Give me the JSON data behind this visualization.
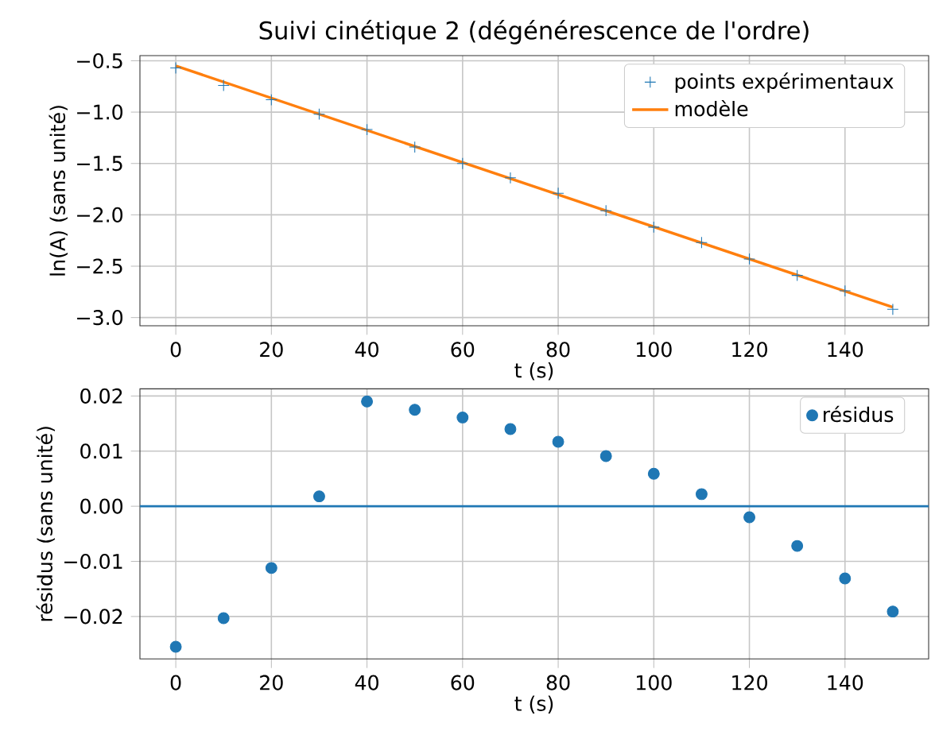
{
  "chart_data": [
    {
      "type": "scatter",
      "title": "Suivi cinétique 2 (dégénérescence de l'ordre)",
      "xlabel": "t (s)",
      "ylabel": "ln(A) (sans unité)",
      "x": [
        0,
        10,
        20,
        30,
        40,
        50,
        60,
        70,
        80,
        90,
        100,
        110,
        120,
        130,
        140,
        150
      ],
      "series": [
        {
          "name": "points expérimentaux",
          "marker": "cross",
          "color": "#1f77b4",
          "values": [
            -0.57,
            -0.74,
            -0.88,
            -1.02,
            -1.17,
            -1.34,
            -1.5,
            -1.64,
            -1.79,
            -1.96,
            -2.12,
            -2.27,
            -2.43,
            -2.59,
            -2.74,
            -2.92
          ]
        },
        {
          "name": "modèle",
          "type": "line",
          "color": "#ff7f0e",
          "x": [
            0,
            150
          ],
          "values": [
            -0.55,
            -2.9
          ]
        }
      ],
      "xlim": [
        -7.5,
        157.5
      ],
      "ylim": [
        -3.08,
        -0.45
      ],
      "xticks": [
        0,
        20,
        40,
        60,
        80,
        100,
        120,
        140
      ],
      "yticks": [
        {
          "value": -3.0,
          "label": "−3.0"
        },
        {
          "value": -2.5,
          "label": "−2.5"
        },
        {
          "value": -2.0,
          "label": "−2.0"
        },
        {
          "value": -1.5,
          "label": "−1.5"
        },
        {
          "value": -1.0,
          "label": "−1.0"
        },
        {
          "value": -0.5,
          "label": "−0.5"
        }
      ],
      "grid": true,
      "legend": "top right"
    },
    {
      "type": "scatter",
      "xlabel": "t (s)",
      "ylabel": "résidus (sans unité)",
      "x": [
        0,
        10,
        20,
        30,
        40,
        50,
        60,
        70,
        80,
        90,
        100,
        110,
        120,
        130,
        140,
        150
      ],
      "series": [
        {
          "name": "résidus",
          "marker": "circle",
          "color": "#1f77b4",
          "values": [
            -0.0255,
            -0.0203,
            -0.0112,
            0.0018,
            0.019,
            0.0175,
            0.0161,
            0.014,
            0.0117,
            0.0091,
            0.0059,
            0.0022,
            -0.002,
            -0.0072,
            -0.0131,
            -0.0191
          ]
        }
      ],
      "ref_lines": [
        {
          "axis": "y",
          "value": 0,
          "color": "#1f77b4"
        }
      ],
      "xlim": [
        -7.5,
        157.5
      ],
      "ylim": [
        -0.0277,
        0.0213
      ],
      "xticks": [
        0,
        20,
        40,
        60,
        80,
        100,
        120,
        140
      ],
      "yticks": [
        {
          "value": -0.02,
          "label": "−0.02"
        },
        {
          "value": -0.01,
          "label": "−0.01"
        },
        {
          "value": 0,
          "label": "0.00"
        },
        {
          "value": 0.01,
          "label": "0.01"
        },
        {
          "value": 0.02,
          "label": "0.02"
        }
      ],
      "grid": true,
      "legend": "top right"
    }
  ]
}
